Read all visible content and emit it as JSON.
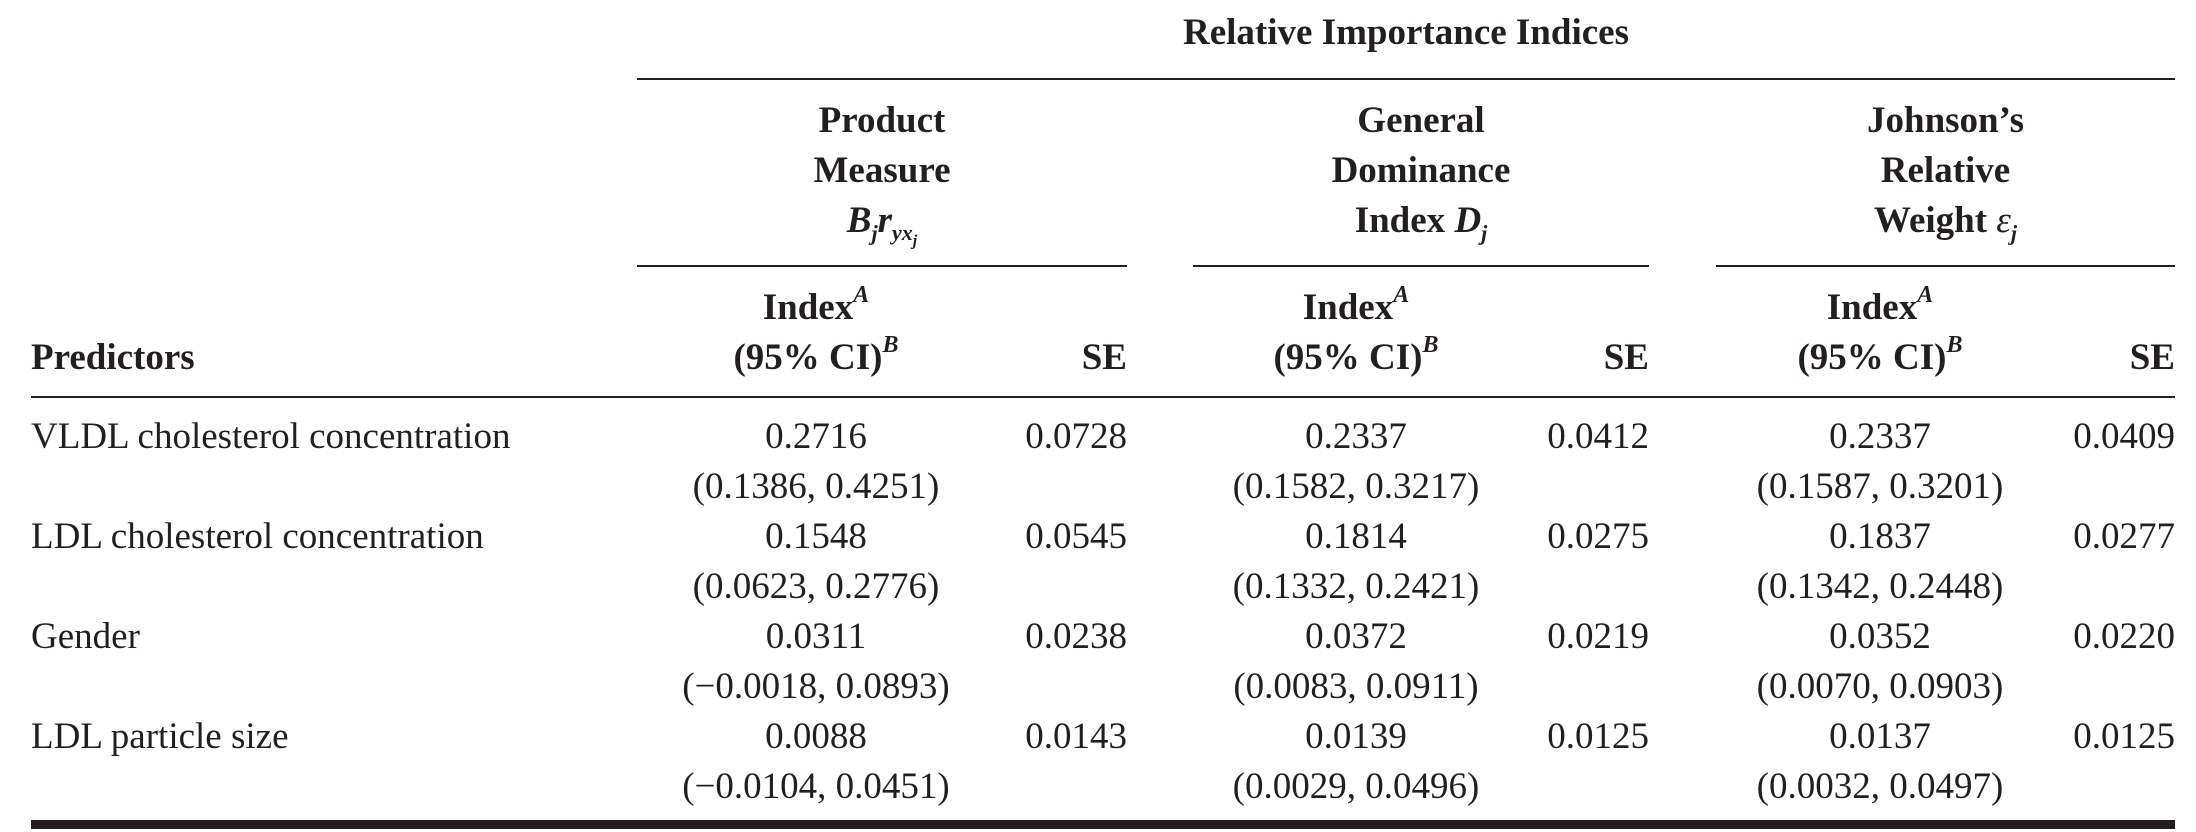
{
  "header": {
    "title": "Relative Importance Indices",
    "predictors_label": "Predictors",
    "groups": [
      {
        "lines": [
          "Product",
          "Measure"
        ],
        "symbol_main": "B",
        "symbol_sub1": "j",
        "symbol_r": "r",
        "symbol_sub2": "yx",
        "symbol_sub3": "j"
      },
      {
        "lines": [
          "General",
          "Dominance"
        ],
        "symbol_prefix": "Index ",
        "symbol_main": "D",
        "symbol_sub1": "j"
      },
      {
        "lines": [
          "Johnson’s",
          "Relative"
        ],
        "symbol_prefix": "Weight ",
        "symbol_main": "ε",
        "symbol_sub1": "j"
      }
    ],
    "index_label": "Index",
    "index_sup": "A",
    "ci_label": "(95% CI)",
    "ci_sup": "B",
    "se_label": "SE"
  },
  "rows": [
    {
      "predictor": "VLDL cholesterol concentration",
      "cells": [
        {
          "index": "0.2716",
          "ci": "(0.1386, 0.4251)",
          "se": "0.0728"
        },
        {
          "index": "0.2337",
          "ci": "(0.1582, 0.3217)",
          "se": "0.0412"
        },
        {
          "index": "0.2337",
          "ci": "(0.1587, 0.3201)",
          "se": "0.0409"
        }
      ]
    },
    {
      "predictor": "LDL cholesterol concentration",
      "cells": [
        {
          "index": "0.1548",
          "ci": "(0.0623, 0.2776)",
          "se": "0.0545"
        },
        {
          "index": "0.1814",
          "ci": "(0.1332, 0.2421)",
          "se": "0.0275"
        },
        {
          "index": "0.1837",
          "ci": "(0.1342, 0.2448)",
          "se": "0.0277"
        }
      ]
    },
    {
      "predictor": "Gender",
      "cells": [
        {
          "index": "0.0311",
          "ci": "(−0.0018, 0.0893)",
          "se": "0.0238"
        },
        {
          "index": "0.0372",
          "ci": "(0.0083, 0.0911)",
          "se": "0.0219"
        },
        {
          "index": "0.0352",
          "ci": "(0.0070, 0.0903)",
          "se": "0.0220"
        }
      ]
    },
    {
      "predictor": "LDL particle size",
      "cells": [
        {
          "index": "0.0088",
          "ci": "(−0.0104, 0.0451)",
          "se": "0.0143"
        },
        {
          "index": "0.0139",
          "ci": "(0.0029, 0.0496)",
          "se": "0.0125"
        },
        {
          "index": "0.0137",
          "ci": "(0.0032, 0.0497)",
          "se": "0.0125"
        }
      ]
    }
  ]
}
